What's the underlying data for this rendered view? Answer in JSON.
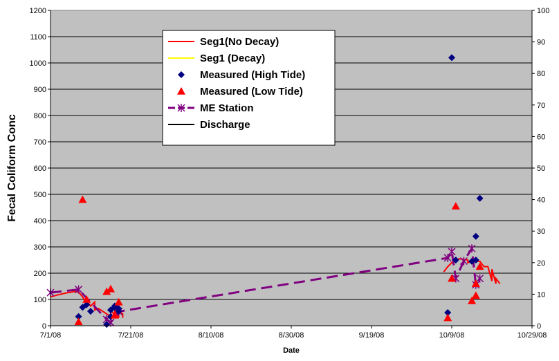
{
  "chart_data": {
    "type": "line",
    "title": "",
    "xlabel": "Date",
    "ylabel": "Fecal Coliform Conc",
    "y2label": "",
    "grid": true,
    "legend_placement": "top-center",
    "plot_background": "#c0c0c0",
    "x_start": "2008-07-01",
    "xlim": [
      "7/1/08",
      "10/29/08"
    ],
    "x_ticks": [
      "7/1/08",
      "7/21/08",
      "8/10/08",
      "8/30/08",
      "9/19/08",
      "10/9/08",
      "10/29/08"
    ],
    "ylim": [
      0,
      1200
    ],
    "y_ticks": [
      "0",
      "100",
      "200",
      "300",
      "400",
      "500",
      "600",
      "700",
      "800",
      "900",
      "1000",
      "1100",
      "1200"
    ],
    "y2lim": [
      0,
      100
    ],
    "y2_ticks": [
      "0",
      "10",
      "20",
      "30",
      "40",
      "50",
      "60",
      "70",
      "80",
      "90",
      "100"
    ],
    "series": [
      {
        "name": "Seg1(No Decay)",
        "kind": "line",
        "color": "#ff0000",
        "axis": "left",
        "segments": [
          {
            "x": [
              "7/1/08",
              "7/3/08",
              "7/5/08",
              "7/7/08",
              "7/8/08",
              "7/9/08",
              "7/10/08",
              "7/10/08",
              "7/11/08",
              "7/12/08",
              "7/12/08",
              "7/13/08",
              "7/14/08",
              "7/15/08",
              "7/16/08",
              "7/16/08",
              "7/17/08",
              "7/17/08",
              "7/18/08",
              "7/18/08",
              "7/19/08",
              "7/19/08",
              "7/19/08"
            ],
            "y": [
              110,
              118,
              125,
              130,
              128,
              110,
              85,
              95,
              75,
              90,
              60,
              65,
              55,
              45,
              35,
              60,
              40,
              65,
              30,
              55,
              45,
              30,
              40
            ]
          },
          {
            "x": [
              "10/7/08",
              "10/8/08",
              "10/9/08",
              "10/10/08",
              "10/11/08",
              "10/12/08",
              "10/13/08",
              "10/13/08",
              "10/14/08",
              "10/15/08",
              "10/16/08",
              "10/17/08",
              "10/18/08",
              "10/19/08",
              "10/19/08",
              "10/20/08",
              "10/20/08",
              "10/21/08"
            ],
            "y": [
              205,
              225,
              240,
              250,
              255,
              252,
              250,
              240,
              245,
              245,
              245,
              225,
              225,
              170,
              215,
              160,
              180,
              160
            ]
          }
        ]
      },
      {
        "name": "Seg1 (Decay)",
        "kind": "line",
        "color": "#ffff00",
        "axis": "left",
        "segments": []
      },
      {
        "name": "Measured (High Tide)",
        "kind": "scatter",
        "marker": "diamond",
        "color": "#000080",
        "axis": "left",
        "x": [
          "7/8/08",
          "7/9/08",
          "7/10/08",
          "7/11/08",
          "7/15/08",
          "7/16/08",
          "7/16/08",
          "7/17/08",
          "7/17/08",
          "7/18/08",
          "7/18/08",
          "10/8/08",
          "10/9/08",
          "10/10/08",
          "10/14/08",
          "10/15/08",
          "10/15/08",
          "10/16/08"
        ],
        "y": [
          35,
          70,
          80,
          55,
          5,
          35,
          60,
          70,
          75,
          65,
          55,
          50,
          1020,
          250,
          245,
          340,
          250,
          485
        ]
      },
      {
        "name": "Measured (Low Tide)",
        "kind": "scatter",
        "marker": "triangle",
        "color": "#ff0000",
        "axis": "left",
        "x": [
          "7/8/08",
          "7/9/08",
          "7/10/08",
          "7/15/08",
          "7/16/08",
          "7/17/08",
          "7/18/08",
          "10/8/08",
          "10/9/08",
          "10/10/08",
          "10/14/08",
          "10/15/08",
          "10/15/08",
          "10/16/08"
        ],
        "y": [
          15,
          480,
          100,
          130,
          140,
          40,
          90,
          30,
          180,
          455,
          95,
          115,
          160,
          225
        ]
      },
      {
        "name": "ME Station",
        "kind": "line_markers",
        "marker": "asterisk",
        "color": "#800080",
        "axis": "right",
        "x": [
          "7/1/08",
          "7/8/08",
          "7/15/08",
          "7/16/08",
          "7/18/08",
          "10/8/08",
          "10/9/08",
          "10/10/08",
          "10/12/08",
          "10/14/08",
          "10/15/08",
          "10/16/08"
        ],
        "y": [
          10.5,
          11.5,
          2,
          1,
          4.5,
          21.5,
          23.5,
          15,
          20.5,
          24.5,
          13,
          15
        ]
      },
      {
        "name": "Discharge",
        "kind": "line",
        "color": "#000000",
        "axis": "left",
        "segments": []
      }
    ]
  }
}
